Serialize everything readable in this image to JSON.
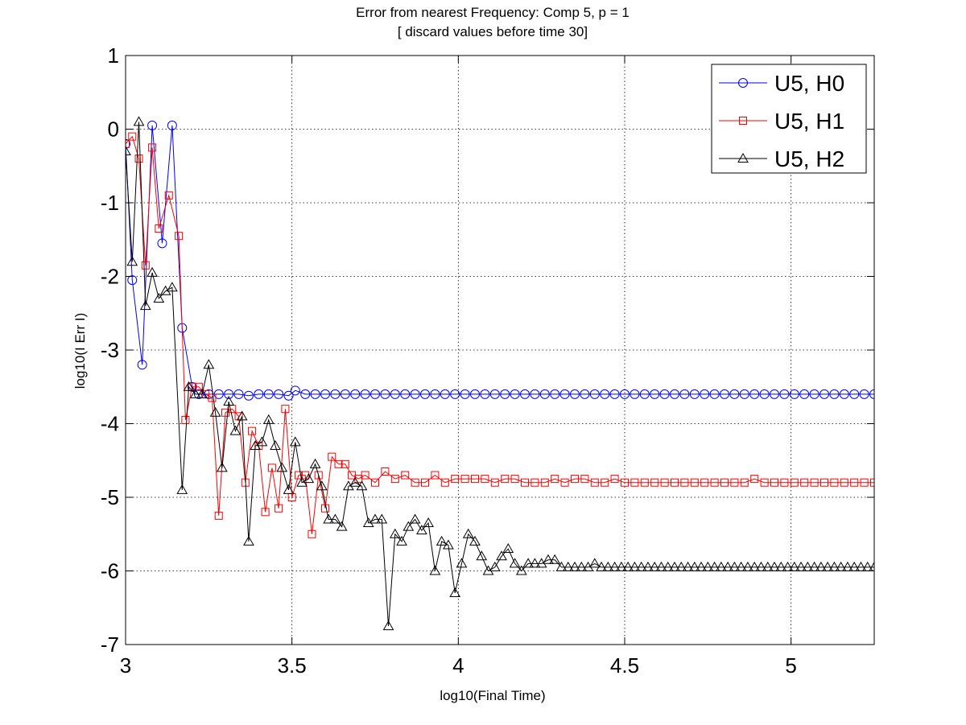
{
  "chart_data": {
    "type": "line",
    "title": "Error from nearest Frequency: Comp 5, p = 1",
    "subtitle": "[ discard values before time 30]",
    "xlabel": "log10(Final Time)",
    "ylabel": "log10(I Err I)",
    "xlim": [
      3,
      5.25
    ],
    "ylim": [
      -7,
      1
    ],
    "xticks": [
      3,
      3.5,
      4,
      4.5,
      5
    ],
    "xtick_labels": [
      "3",
      "3.5",
      "4",
      "4.5",
      "5"
    ],
    "yticks": [
      1,
      0,
      -1,
      -2,
      -3,
      -4,
      -5,
      -6,
      -7
    ],
    "ytick_labels": [
      "1",
      "0",
      "-1",
      "-2",
      "-3",
      "-4",
      "-5",
      "-6",
      "-7"
    ],
    "grid": true,
    "legend_position": "top-right",
    "series": [
      {
        "name": "U5, H0",
        "color": "#0000ff",
        "marker": "circle",
        "x": [
          3.0,
          3.02,
          3.05,
          3.08,
          3.11,
          3.14,
          3.17,
          3.2,
          3.22,
          3.25,
          3.28,
          3.31,
          3.34,
          3.37,
          3.4,
          3.43,
          3.46,
          3.49,
          3.51,
          3.54,
          3.57,
          3.6,
          3.63,
          3.66,
          3.69,
          3.72,
          3.75,
          3.78,
          3.81,
          3.84,
          3.87,
          3.9,
          3.93,
          3.96,
          3.99,
          4.02,
          4.05,
          4.08,
          4.11,
          4.14,
          4.17,
          4.2,
          4.23,
          4.26,
          4.29,
          4.32,
          4.35,
          4.38,
          4.41,
          4.44,
          4.47,
          4.5,
          4.53,
          4.56,
          4.59,
          4.62,
          4.65,
          4.68,
          4.71,
          4.74,
          4.77,
          4.8,
          4.83,
          4.86,
          4.89,
          4.92,
          4.95,
          4.98,
          5.01,
          5.04,
          5.07,
          5.1,
          5.13,
          5.16,
          5.19,
          5.22,
          5.25
        ],
        "y": [
          -0.2,
          -2.05,
          -3.2,
          0.05,
          -1.55,
          0.05,
          -2.7,
          -3.5,
          -3.6,
          -3.6,
          -3.6,
          -3.6,
          -3.6,
          -3.62,
          -3.6,
          -3.6,
          -3.6,
          -3.62,
          -3.55,
          -3.6,
          -3.6,
          -3.6,
          -3.6,
          -3.6,
          -3.6,
          -3.6,
          -3.6,
          -3.6,
          -3.6,
          -3.6,
          -3.6,
          -3.6,
          -3.6,
          -3.6,
          -3.6,
          -3.6,
          -3.6,
          -3.6,
          -3.6,
          -3.6,
          -3.6,
          -3.6,
          -3.6,
          -3.6,
          -3.6,
          -3.6,
          -3.6,
          -3.6,
          -3.6,
          -3.6,
          -3.6,
          -3.6,
          -3.6,
          -3.6,
          -3.6,
          -3.6,
          -3.6,
          -3.6,
          -3.6,
          -3.6,
          -3.6,
          -3.6,
          -3.6,
          -3.6,
          -3.6,
          -3.6,
          -3.6,
          -3.6,
          -3.6,
          -3.6,
          -3.6,
          -3.6,
          -3.6,
          -3.6,
          -3.6,
          -3.6,
          -3.6
        ]
      },
      {
        "name": "U5, H1",
        "color": "#ff0000",
        "marker": "square",
        "x": [
          3.0,
          3.02,
          3.04,
          3.06,
          3.08,
          3.1,
          3.13,
          3.16,
          3.18,
          3.2,
          3.22,
          3.24,
          3.26,
          3.28,
          3.3,
          3.32,
          3.34,
          3.36,
          3.38,
          3.4,
          3.42,
          3.44,
          3.46,
          3.48,
          3.5,
          3.52,
          3.54,
          3.56,
          3.58,
          3.6,
          3.62,
          3.64,
          3.66,
          3.68,
          3.7,
          3.72,
          3.75,
          3.78,
          3.81,
          3.84,
          3.87,
          3.9,
          3.93,
          3.96,
          3.99,
          4.02,
          4.05,
          4.08,
          4.11,
          4.14,
          4.17,
          4.2,
          4.23,
          4.26,
          4.29,
          4.32,
          4.35,
          4.38,
          4.41,
          4.44,
          4.47,
          4.5,
          4.53,
          4.56,
          4.59,
          4.62,
          4.65,
          4.68,
          4.71,
          4.74,
          4.77,
          4.8,
          4.83,
          4.86,
          4.89,
          4.92,
          4.95,
          4.98,
          5.01,
          5.04,
          5.07,
          5.1,
          5.13,
          5.16,
          5.19,
          5.22,
          5.25
        ],
        "y": [
          -0.2,
          -0.1,
          -0.4,
          -1.85,
          -0.25,
          -1.35,
          -0.9,
          -1.45,
          -3.95,
          -3.5,
          -3.5,
          -3.6,
          -3.65,
          -5.25,
          -3.85,
          -3.8,
          -3.9,
          -4.8,
          -4.1,
          -4.3,
          -5.2,
          -4.6,
          -5.15,
          -3.8,
          -5.0,
          -4.7,
          -4.7,
          -5.5,
          -4.7,
          -5.15,
          -4.45,
          -4.55,
          -4.55,
          -4.7,
          -4.75,
          -4.7,
          -4.8,
          -4.65,
          -4.75,
          -4.7,
          -4.8,
          -4.8,
          -4.7,
          -4.8,
          -4.75,
          -4.75,
          -4.75,
          -4.75,
          -4.8,
          -4.75,
          -4.75,
          -4.8,
          -4.8,
          -4.8,
          -4.75,
          -4.8,
          -4.75,
          -4.75,
          -4.8,
          -4.8,
          -4.75,
          -4.8,
          -4.8,
          -4.8,
          -4.8,
          -4.8,
          -4.8,
          -4.8,
          -4.8,
          -4.8,
          -4.8,
          -4.8,
          -4.8,
          -4.8,
          -4.75,
          -4.8,
          -4.8,
          -4.8,
          -4.8,
          -4.8,
          -4.8,
          -4.8,
          -4.8,
          -4.8,
          -4.8,
          -4.8,
          -4.8
        ]
      },
      {
        "name": "U5, H2",
        "color": "#000000",
        "marker": "triangle",
        "x": [
          3.0,
          3.02,
          3.04,
          3.06,
          3.08,
          3.1,
          3.12,
          3.14,
          3.17,
          3.19,
          3.21,
          3.23,
          3.25,
          3.27,
          3.29,
          3.31,
          3.33,
          3.35,
          3.37,
          3.39,
          3.41,
          3.43,
          3.45,
          3.47,
          3.49,
          3.51,
          3.53,
          3.55,
          3.57,
          3.59,
          3.61,
          3.63,
          3.65,
          3.67,
          3.69,
          3.71,
          3.73,
          3.75,
          3.77,
          3.79,
          3.81,
          3.83,
          3.85,
          3.87,
          3.89,
          3.91,
          3.93,
          3.95,
          3.97,
          3.99,
          4.01,
          4.03,
          4.05,
          4.07,
          4.09,
          4.11,
          4.13,
          4.15,
          4.17,
          4.19,
          4.21,
          4.23,
          4.25,
          4.27,
          4.29,
          4.31,
          4.33,
          4.35,
          4.37,
          4.39,
          4.41,
          4.43,
          4.45,
          4.47,
          4.49,
          4.51,
          4.53,
          4.55,
          4.57,
          4.59,
          4.61,
          4.63,
          4.65,
          4.67,
          4.69,
          4.71,
          4.73,
          4.75,
          4.77,
          4.79,
          4.81,
          4.83,
          4.85,
          4.87,
          4.89,
          4.91,
          4.93,
          4.95,
          4.97,
          4.99,
          5.01,
          5.03,
          5.05,
          5.07,
          5.09,
          5.11,
          5.13,
          5.15,
          5.17,
          5.19,
          5.21,
          5.23,
          5.25
        ],
        "y": [
          -0.3,
          -1.8,
          0.1,
          -2.4,
          -1.95,
          -2.3,
          -2.2,
          -2.15,
          -4.9,
          -3.5,
          -3.6,
          -3.6,
          -3.2,
          -3.85,
          -4.6,
          -3.7,
          -4.1,
          -3.9,
          -5.6,
          -4.3,
          -4.25,
          -3.95,
          -4.3,
          -4.6,
          -4.9,
          -4.25,
          -4.8,
          -4.75,
          -4.55,
          -4.85,
          -5.3,
          -5.3,
          -5.4,
          -4.85,
          -4.8,
          -4.85,
          -5.35,
          -5.3,
          -5.3,
          -6.75,
          -5.5,
          -5.6,
          -5.4,
          -5.3,
          -5.45,
          -5.35,
          -6.0,
          -5.6,
          -5.65,
          -6.3,
          -5.9,
          -5.5,
          -5.6,
          -5.8,
          -6.0,
          -5.95,
          -5.8,
          -5.7,
          -5.9,
          -6.0,
          -5.9,
          -5.9,
          -5.9,
          -5.85,
          -5.85,
          -5.95,
          -5.95,
          -5.95,
          -5.95,
          -5.95,
          -5.9,
          -5.95,
          -5.95,
          -5.95,
          -5.95,
          -5.95,
          -5.95,
          -5.95,
          -5.95,
          -5.95,
          -5.95,
          -5.95,
          -5.95,
          -5.95,
          -5.95,
          -5.95,
          -5.95,
          -5.95,
          -5.95,
          -5.95,
          -5.95,
          -5.95,
          -5.95,
          -5.95,
          -5.95,
          -5.95,
          -5.95,
          -5.95,
          -5.95,
          -5.95,
          -5.95,
          -5.95,
          -5.95,
          -5.95,
          -5.95,
          -5.95,
          -5.95,
          -5.95,
          -5.95,
          -5.95,
          -5.95,
          -5.95,
          -5.95
        ]
      }
    ]
  }
}
